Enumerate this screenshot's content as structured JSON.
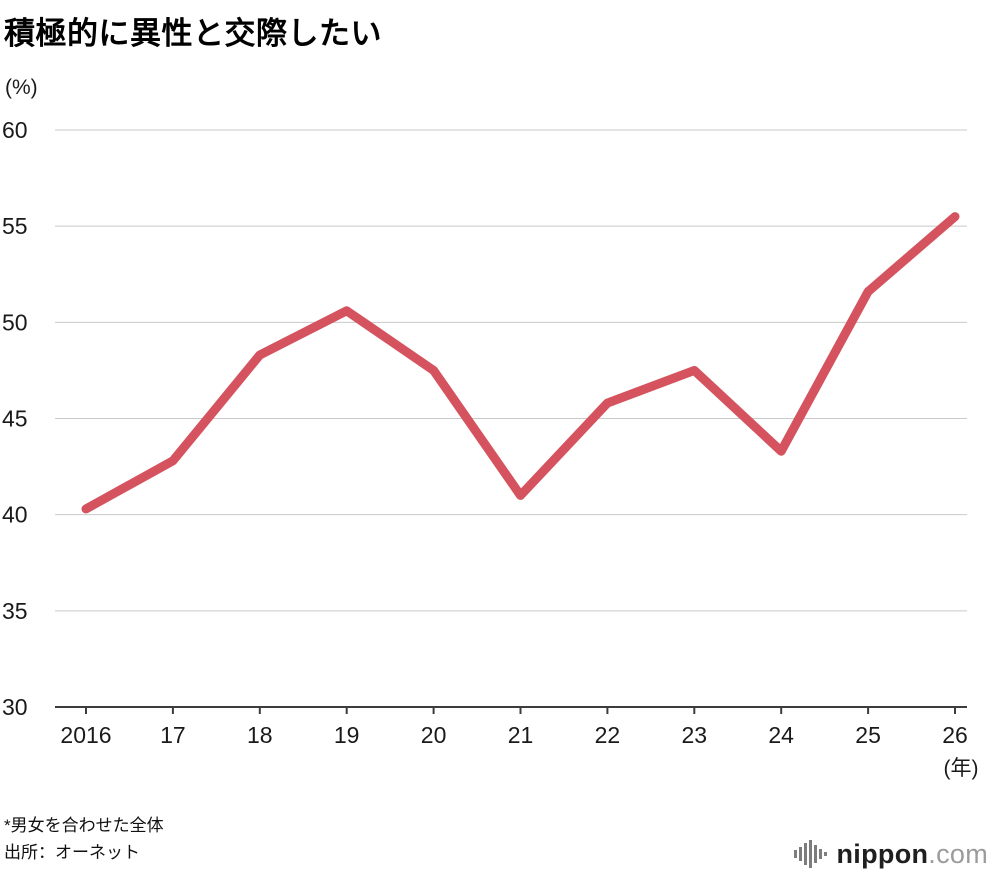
{
  "title": "積極的に異性と交際したい",
  "unit_label": "(%)",
  "footnotes": {
    "scope": "*男女を合わせた全体",
    "source": "出所：オーネット"
  },
  "logo": {
    "name": "nippon",
    "domain": ".com",
    "icon": "soundwave-icon"
  },
  "colors": {
    "line": "#d4535e",
    "grid": "#c9c9c9",
    "axis": "#3c3c3c",
    "text": "#1a1a1a"
  },
  "chart_data": {
    "type": "line",
    "title": "積極的に異性と交際したい",
    "categories": [
      "2016",
      "17",
      "18",
      "19",
      "20",
      "21",
      "22",
      "23",
      "24",
      "25",
      "26"
    ],
    "values": [
      40.3,
      42.8,
      48.3,
      50.6,
      47.5,
      41.0,
      45.8,
      47.5,
      43.3,
      51.6,
      55.5
    ],
    "xlabel": "(年)",
    "ylabel": "(%)",
    "ylim": [
      30,
      60
    ],
    "yticks": [
      30,
      35,
      40,
      45,
      50,
      55,
      60
    ],
    "grid": true,
    "legend": "none",
    "line_color": "#d4535e"
  }
}
